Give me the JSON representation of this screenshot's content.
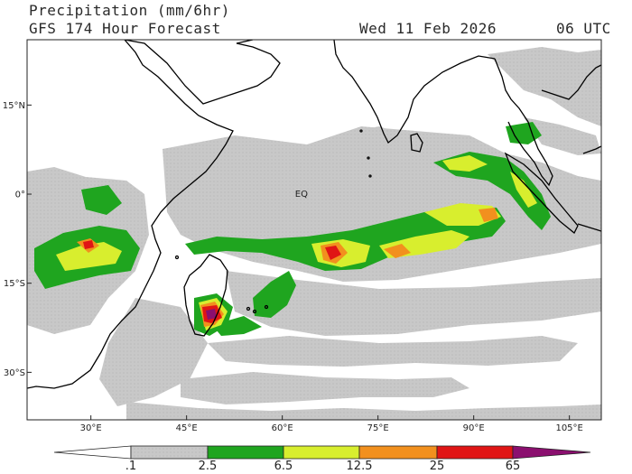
{
  "header": {
    "title_line1": "Precipitation (mm/6hr)",
    "title_line2": "GFS 174 Hour Forecast",
    "valid_date": "Wed 11 Feb 2026",
    "valid_time": "06 UTC"
  },
  "map": {
    "region": "Indian Ocean",
    "lon_range": [
      20,
      110
    ],
    "lat_range": [
      -38,
      26
    ],
    "lat_ticks": [
      {
        "value": 15,
        "label": "15°N"
      },
      {
        "value": 0,
        "label": "0°"
      },
      {
        "value": -15,
        "label": "15°S"
      },
      {
        "value": -30,
        "label": "30°S"
      }
    ],
    "lon_ticks": [
      {
        "value": 30,
        "label": "30°E"
      },
      {
        "value": 45,
        "label": "45°E"
      },
      {
        "value": 60,
        "label": "60°E"
      },
      {
        "value": 75,
        "label": "75°E"
      },
      {
        "value": 90,
        "label": "90°E"
      },
      {
        "value": 105,
        "label": "105°E"
      }
    ],
    "equator_label": "EQ"
  },
  "colorbar": {
    "levels": [
      ".1",
      "2.5",
      "6.5",
      "12.5",
      "25",
      "65"
    ],
    "colors": {
      "below": "#ffffff",
      "c1": "#c8c8c8",
      "c2": "#1fa51f",
      "c3": "#d8ee2e",
      "c4": "#f2901e",
      "c5": "#e01515",
      "c6": "#8b0f6f"
    }
  }
}
